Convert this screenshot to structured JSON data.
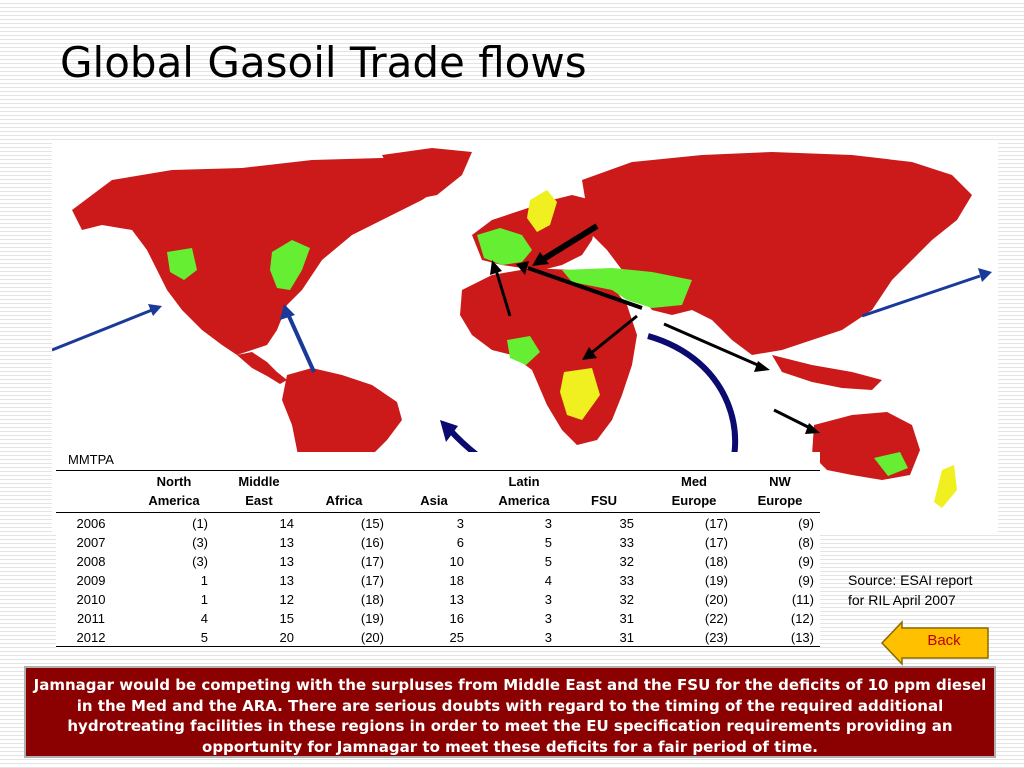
{
  "slide": {
    "title": "Global Gasoil Trade flows"
  },
  "map": {
    "colors": {
      "deficit": "#cc1a1a",
      "surplus": "#66ee33",
      "neutral": "#f0f020",
      "ocean": "#ffffff",
      "arrow_dark": "#000000",
      "arrow_blue": "#1a3a9a",
      "arrow_navy": "#0a0a70"
    },
    "legend_unit": "MMTPA"
  },
  "table": {
    "headers": [
      {
        "line1": "North",
        "line2": "America"
      },
      {
        "line1": "Middle",
        "line2": "East"
      },
      {
        "line1": "",
        "line2": "Africa"
      },
      {
        "line1": "",
        "line2": "Asia"
      },
      {
        "line1": "Latin",
        "line2": "America"
      },
      {
        "line1": "",
        "line2": "FSU"
      },
      {
        "line1": "Med",
        "line2": "Europe"
      },
      {
        "line1": "NW",
        "line2": "Europe"
      }
    ],
    "rows": [
      {
        "year": "2006",
        "values": [
          "(1)",
          "14",
          "(15)",
          "3",
          "3",
          "35",
          "(17)",
          "(9)"
        ]
      },
      {
        "year": "2007",
        "values": [
          "(3)",
          "13",
          "(16)",
          "6",
          "5",
          "33",
          "(17)",
          "(8)"
        ]
      },
      {
        "year": "2008",
        "values": [
          "(3)",
          "13",
          "(17)",
          "10",
          "5",
          "32",
          "(18)",
          "(9)"
        ]
      },
      {
        "year": "2009",
        "values": [
          "1",
          "13",
          "(17)",
          "18",
          "4",
          "33",
          "(19)",
          "(9)"
        ]
      },
      {
        "year": "2010",
        "values": [
          "1",
          "12",
          "(18)",
          "13",
          "3",
          "32",
          "(20)",
          "(11)"
        ]
      },
      {
        "year": "2011",
        "values": [
          "4",
          "15",
          "(19)",
          "16",
          "3",
          "31",
          "(22)",
          "(12)"
        ]
      },
      {
        "year": "2012",
        "values": [
          "5",
          "20",
          "(20)",
          "25",
          "3",
          "31",
          "(23)",
          "(13)"
        ]
      }
    ]
  },
  "source": {
    "line1": "Source: ESAI report",
    "line2": "for RIL April 2007"
  },
  "back_button": {
    "label": "Back",
    "fill": "#ffc000"
  },
  "banner": {
    "text": "Jamnagar would be competing with the surpluses from Middle East and the FSU for the deficits of 10 ppm diesel in the Med and the ARA. There are serious doubts with regard to the timing of the required additional hydrotreating facilities in these regions in order to meet the EU specification requirements providing an opportunity for Jamnagar to meet these deficits for a fair period of time."
  }
}
